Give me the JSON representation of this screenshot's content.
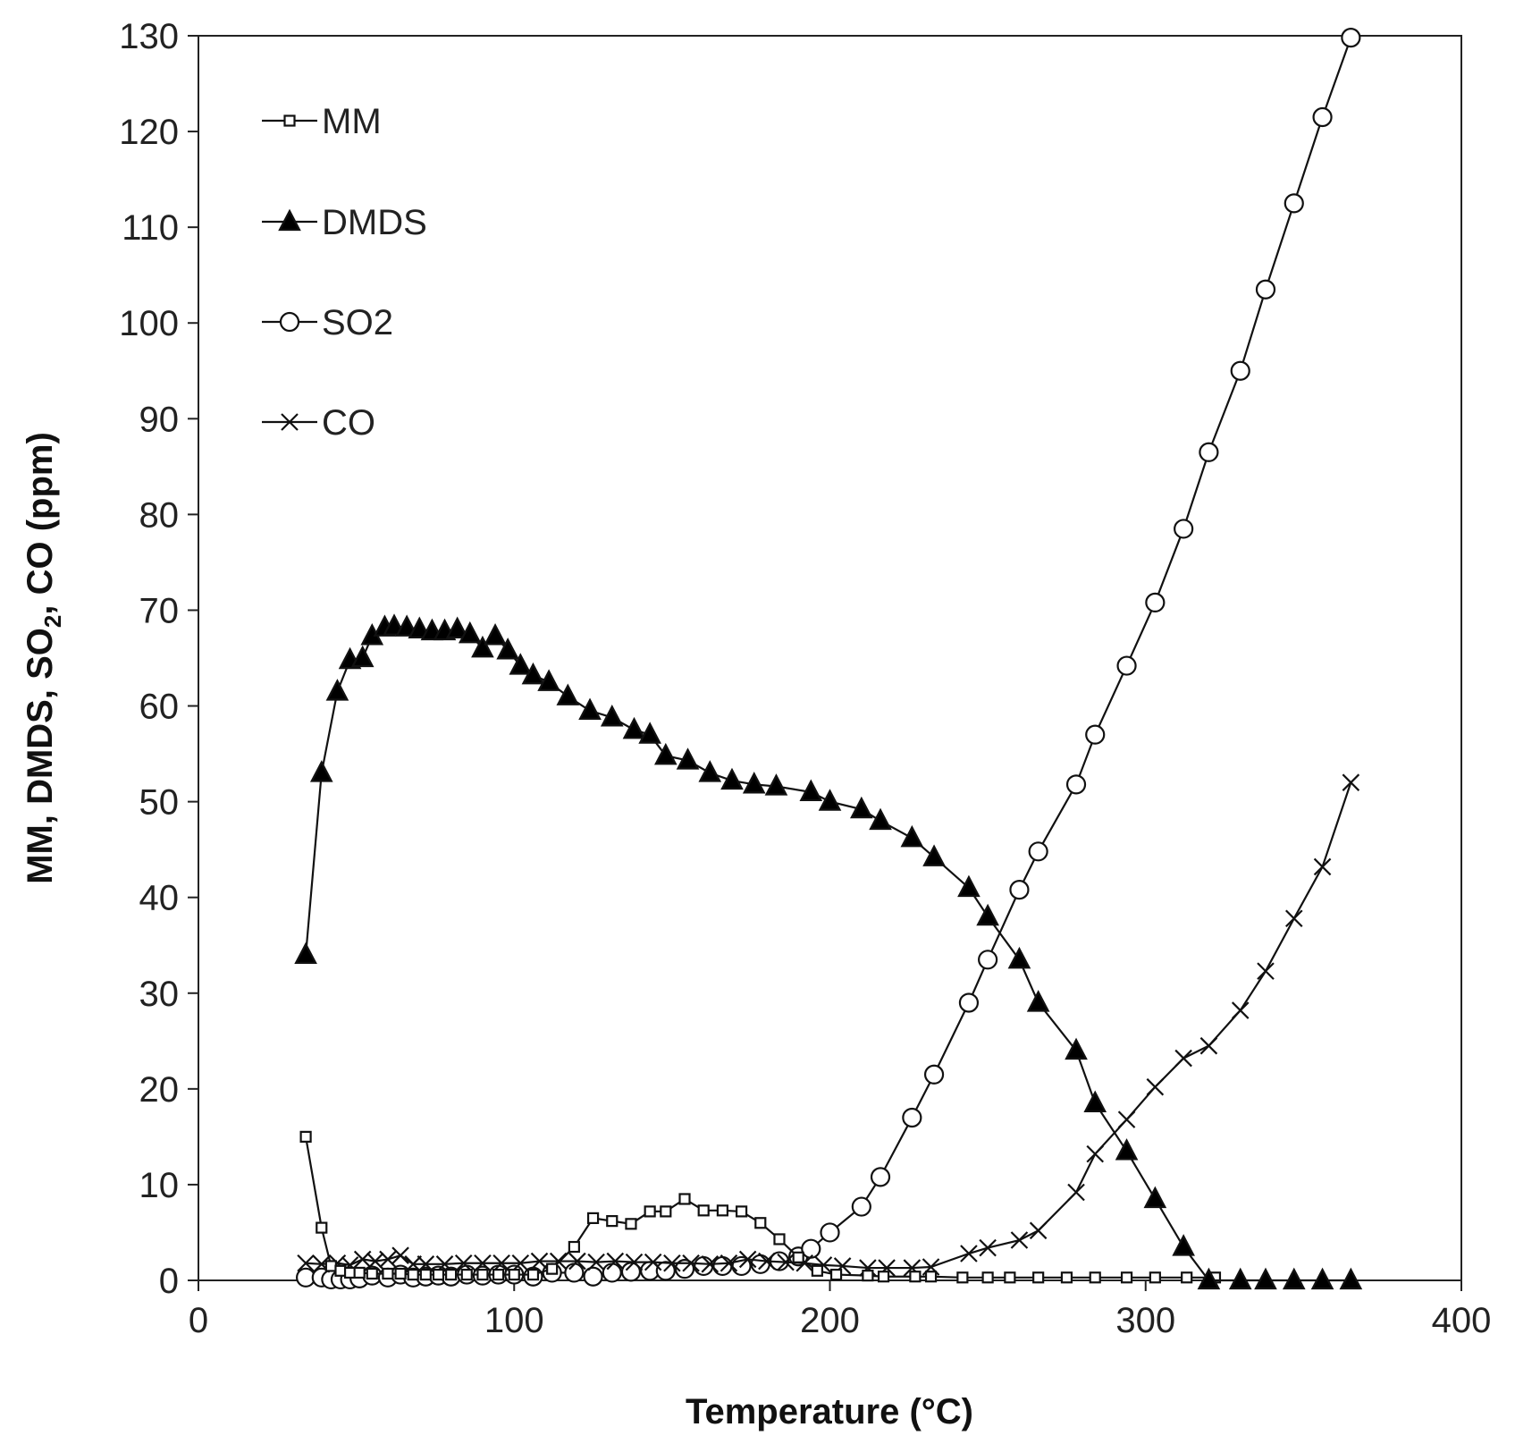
{
  "chart_data": {
    "type": "line",
    "title": "",
    "xlabel": "Temperature (°C)",
    "ylabel_parts": [
      "MM, DMDS, SO",
      "2",
      ", CO (ppm)"
    ],
    "xlim": [
      0,
      400
    ],
    "ylim": [
      0,
      130
    ],
    "xticks": [
      0,
      100,
      200,
      300,
      400
    ],
    "yticks": [
      0,
      10,
      20,
      30,
      40,
      50,
      60,
      70,
      80,
      90,
      100,
      110,
      120,
      130
    ],
    "grid": false,
    "legend_position": "top-left",
    "series": [
      {
        "name": "MM",
        "marker": "square",
        "x": [
          34,
          39,
          42,
          45,
          48,
          51,
          55,
          60,
          64,
          68,
          72,
          76,
          80,
          85,
          90,
          95,
          100,
          106,
          112,
          119,
          125,
          131,
          137,
          143,
          148,
          154,
          160,
          166,
          172,
          178,
          184,
          190,
          196,
          202,
          212,
          217,
          227,
          232,
          242,
          250,
          257,
          266,
          275,
          284,
          294,
          303,
          313,
          322
        ],
        "y": [
          15,
          5.5,
          1.5,
          1,
          0.8,
          0.8,
          0.7,
          0.7,
          0.7,
          0.6,
          0.6,
          0.6,
          0.6,
          0.6,
          0.6,
          0.6,
          0.6,
          0.6,
          1.2,
          3.5,
          6.5,
          6.2,
          5.9,
          7.2,
          7.2,
          8.5,
          7.3,
          7.3,
          7.2,
          6.0,
          4.3,
          2.4,
          1.0,
          0.6,
          0.5,
          0.4,
          0.4,
          0.4,
          0.3,
          0.3,
          0.3,
          0.3,
          0.3,
          0.3,
          0.3,
          0.3,
          0.3,
          0.3
        ]
      },
      {
        "name": "DMDS",
        "marker": "triangle",
        "x": [
          34,
          39,
          44,
          48,
          52,
          55,
          59,
          62,
          66,
          70,
          74,
          78,
          82,
          86,
          90,
          94,
          98,
          102,
          106,
          111,
          117,
          124,
          131,
          138,
          143,
          148,
          155,
          162,
          169,
          176,
          183,
          194,
          200,
          210,
          216,
          226,
          233,
          244,
          250,
          260,
          266,
          278,
          284,
          294,
          303,
          312,
          320,
          330,
          338,
          347,
          356,
          365
        ],
        "y": [
          34,
          53,
          61.5,
          64.8,
          65,
          67.3,
          68.2,
          68.3,
          68.2,
          68,
          67.8,
          67.8,
          68,
          67.5,
          66,
          67.3,
          65.8,
          64.2,
          63.2,
          62.5,
          61,
          59.5,
          58.8,
          57.5,
          57,
          54.8,
          54.3,
          53,
          52.2,
          51.8,
          51.6,
          51,
          50,
          49.2,
          48,
          46.2,
          44.2,
          41,
          38,
          33.5,
          29,
          24,
          18.5,
          13.5,
          8.5,
          3.5,
          0,
          0,
          0,
          0,
          0,
          0
        ]
      },
      {
        "name": "SO2",
        "marker": "circle",
        "x": [
          34,
          39,
          42,
          45,
          48,
          51,
          55,
          60,
          64,
          68,
          72,
          76,
          80,
          85,
          90,
          95,
          100,
          106,
          112,
          119,
          125,
          131,
          137,
          143,
          148,
          154,
          160,
          166,
          172,
          178,
          184,
          190,
          194,
          200,
          210,
          216,
          226,
          233,
          244,
          250,
          260,
          266,
          278,
          284,
          294,
          303,
          312,
          320,
          330,
          338,
          347,
          356,
          365
        ],
        "y": [
          0.3,
          0.3,
          0.1,
          0.1,
          0.1,
          0.2,
          0.5,
          0.3,
          0.6,
          0.3,
          0.4,
          0.5,
          0.4,
          0.6,
          0.5,
          0.6,
          0.6,
          0.4,
          0.8,
          0.8,
          0.4,
          0.8,
          0.9,
          1.0,
          1.0,
          1.2,
          1.5,
          1.5,
          1.5,
          1.7,
          2.0,
          2.5,
          3.3,
          5.0,
          7.7,
          10.8,
          17,
          21.5,
          29,
          33.5,
          40.8,
          44.8,
          51.8,
          57,
          64.2,
          70.8,
          78.5,
          86.5,
          95,
          103.5,
          112.5,
          121.5,
          129.8
        ]
      },
      {
        "name": "CO",
        "marker": "x",
        "x": [
          34,
          39,
          44,
          48,
          52,
          56,
          60,
          64,
          68,
          72,
          78,
          84,
          90,
          96,
          102,
          108,
          114,
          120,
          126,
          132,
          138,
          144,
          150,
          156,
          162,
          168,
          174,
          180,
          186,
          192,
          198,
          204,
          212,
          218,
          226,
          232,
          244,
          250,
          260,
          266,
          278,
          284,
          294,
          303,
          312,
          320,
          330,
          338,
          347,
          356,
          365
        ],
        "y": [
          1.8,
          1.7,
          1.8,
          1.6,
          2.2,
          2.0,
          2.2,
          2.6,
          1.7,
          1.7,
          1.7,
          1.8,
          1.8,
          1.8,
          1.8,
          2.0,
          2.0,
          2.0,
          1.9,
          2.0,
          1.9,
          1.9,
          1.8,
          1.8,
          1.7,
          1.8,
          2.2,
          2.0,
          1.9,
          1.8,
          1.6,
          1.5,
          1.3,
          1.3,
          1.3,
          1.4,
          2.8,
          3.4,
          4.2,
          5.2,
          9.2,
          13.2,
          16.8,
          20.2,
          23.2,
          24.5,
          28.2,
          32.3,
          37.8,
          43.2,
          52
        ]
      }
    ]
  }
}
